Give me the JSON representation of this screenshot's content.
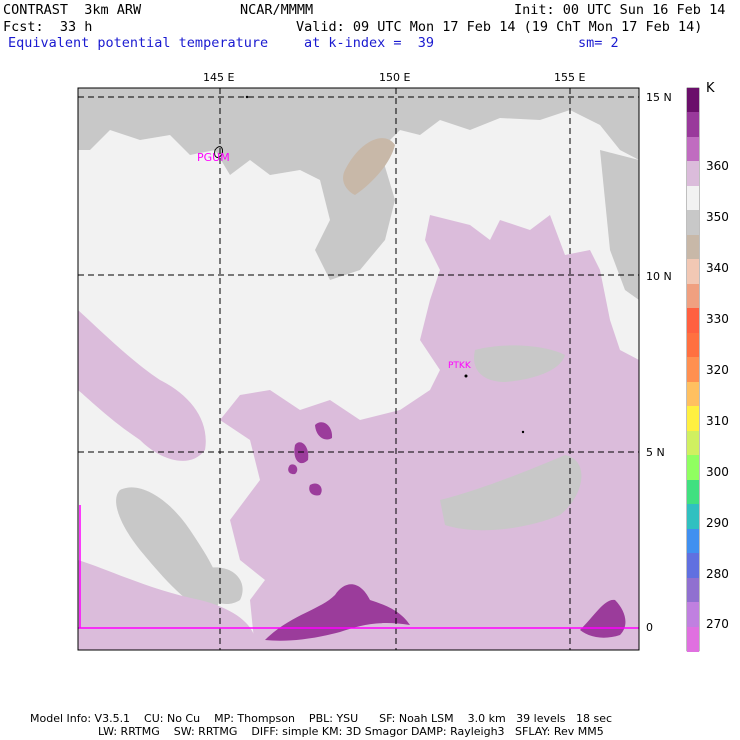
{
  "header": {
    "model": "CONTRAST  3km ARW",
    "center": "NCAR/MMMM",
    "init": "Init: 00 UTC Sun 16 Feb 14",
    "fcst": "Fcst:  33 h",
    "valid": "Valid: 09 UTC Mon 17 Feb 14 (19 ChT Mon 17 Feb 14)",
    "field": "Equivalent potential temperature",
    "level": "at k-index =  39",
    "smooth": "sm= 2"
  },
  "map": {
    "lon_labels": [
      "145 E",
      "150 E",
      "155 E"
    ],
    "lat_labels": [
      "15 N",
      "10 N",
      "5 N",
      "0"
    ],
    "stations": [
      "PGUM",
      "PTKK"
    ],
    "colors": {
      "background": "#f2f2f2",
      "gray": "#c8c8c8",
      "tan": "#c8b8a8",
      "light_purple": "#dbbcdb",
      "dark_purple": "#9b3c9b",
      "station": "#ff00ff"
    }
  },
  "colorbar": {
    "unit": "K",
    "labels": [
      "360",
      "350",
      "340",
      "330",
      "320",
      "310",
      "300",
      "290",
      "280",
      "270"
    ],
    "colors": [
      "#6a0f6a",
      "#99399b",
      "#c06cc0",
      "#dbbcdb",
      "#f2f2f2",
      "#c8c8c8",
      "#c8b8a8",
      "#f2c8b4",
      "#f0a080",
      "#ff6040",
      "#ff7040",
      "#ff9050",
      "#ffc060",
      "#fff040",
      "#d0f060",
      "#90ff60",
      "#40e080",
      "#30c0c0",
      "#4090f0",
      "#6070e0",
      "#9070d0",
      "#c080e0",
      "#e070e0"
    ]
  },
  "footer": {
    "line1": "Model Info: V3.5.1    CU: No Cu    MP: Thompson    PBL: YSU      SF: Noah LSM    3.0 km   39 levels   18 sec",
    "line2": "LW: RRTMG    SW: RRTMG    DIFF: simple KM: 3D Smagor DAMP: Rayleigh3   SFLAY: Rev MM5"
  }
}
